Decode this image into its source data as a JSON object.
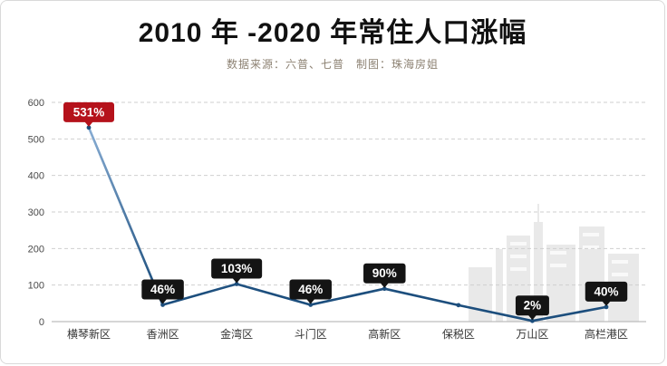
{
  "title": "2010 年 -2020 年常住人口涨幅",
  "subtitle": "数据来源：六普、七普　制图：珠海房姐",
  "chart_data": {
    "type": "line",
    "title": "2010 年 -2020 年常住人口涨幅",
    "categories": [
      "横琴新区",
      "香洲区",
      "金湾区",
      "斗门区",
      "高新区",
      "保税区",
      "万山区",
      "高栏港区"
    ],
    "values": [
      531,
      46,
      103,
      46,
      90,
      45,
      2,
      40
    ],
    "point_labels": [
      "531%",
      "46%",
      "103%",
      "46%",
      "90%",
      "",
      "2%",
      "40%"
    ],
    "ylim": [
      0,
      600
    ],
    "yticks": [
      0,
      100,
      200,
      300,
      400,
      500,
      600
    ],
    "grid": true,
    "legend": false,
    "xlabel": "",
    "ylabel": "",
    "colors": {
      "line": "#1c4e7d",
      "line_gradient_top": "#8fb3d9",
      "label_bg": "#141414",
      "label_highlight_bg": "#b5121b",
      "label_text": "#ffffff",
      "grid_line": "#cfcfcf",
      "axis_line": "#bdbdbd",
      "tick_text": "#4a4a4a",
      "category_text": "#333333",
      "watermark": "#e9e9e9"
    }
  }
}
